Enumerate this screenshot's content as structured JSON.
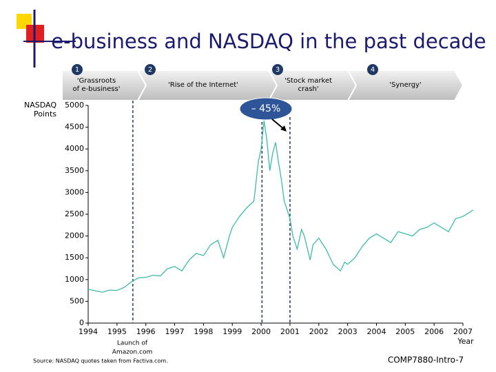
{
  "chart_data": {
    "type": "line",
    "title": "e-business and NASDAQ in the past decade",
    "ylabel": [
      "NASDAQ",
      "Points"
    ],
    "xlabel": "Year",
    "color": "#3bbcaa",
    "xlim": [
      1994,
      2007
    ],
    "ylim": [
      0,
      5000
    ],
    "xticks": [
      1994,
      1995,
      1996,
      1997,
      1998,
      1999,
      2000,
      2001,
      2002,
      2003,
      2004,
      2005,
      2006,
      2007
    ],
    "yticks": [
      0,
      500,
      1000,
      1500,
      2000,
      2500,
      3000,
      3500,
      4000,
      4500,
      5000
    ],
    "x": [
      1994.0,
      1994.25,
      1994.5,
      1994.75,
      1995.0,
      1995.25,
      1995.5,
      1995.75,
      1996.0,
      1996.25,
      1996.5,
      1996.75,
      1997.0,
      1997.25,
      1997.5,
      1997.75,
      1998.0,
      1998.25,
      1998.5,
      1998.7,
      1998.9,
      1999.0,
      1999.25,
      1999.5,
      1999.75,
      1999.9,
      2000.0,
      2000.1,
      2000.2,
      2000.3,
      2000.4,
      2000.5,
      2000.6,
      2000.7,
      2000.8,
      2001.0,
      2001.1,
      2001.25,
      2001.4,
      2001.5,
      2001.7,
      2001.8,
      2002.0,
      2002.25,
      2002.5,
      2002.75,
      2002.9,
      2003.0,
      2003.25,
      2003.5,
      2003.75,
      2004.0,
      2004.25,
      2004.5,
      2004.75,
      2005.0,
      2005.25,
      2005.5,
      2005.75,
      2006.0,
      2006.25,
      2006.5,
      2006.75,
      2007.0,
      2007.25,
      2007.35
    ],
    "values": [
      780,
      740,
      710,
      760,
      750,
      820,
      950,
      1040,
      1050,
      1100,
      1080,
      1250,
      1300,
      1200,
      1450,
      1600,
      1550,
      1800,
      1900,
      1500,
      2000,
      2200,
      2450,
      2650,
      2800,
      3700,
      4000,
      4650,
      4200,
      3500,
      3900,
      4150,
      3700,
      3300,
      2800,
      2400,
      2000,
      1700,
      2150,
      2000,
      1450,
      1800,
      1950,
      1700,
      1350,
      1200,
      1400,
      1350,
      1500,
      1750,
      1950,
      2050,
      1950,
      1850,
      2100,
      2050,
      2000,
      2150,
      2200,
      2300,
      2200,
      2100,
      2400,
      2450,
      2550,
      2600
    ],
    "markers": [
      1995.55,
      2000.03,
      2001.0
    ],
    "phases": [
      {
        "number": "1",
        "label": [
          "'Grassroots",
          "of e-business'"
        ]
      },
      {
        "number": "2",
        "label": [
          "'Rise of the Internet'"
        ]
      },
      {
        "number": "3",
        "label": [
          "'Stock market",
          "crash'"
        ]
      },
      {
        "number": "4",
        "label": [
          "'Synergy'"
        ]
      }
    ],
    "callout": "– 45%",
    "marker_note": [
      "Launch of",
      "Amazon.com"
    ],
    "source": "Source: NASDAQ quotes taken from Factiva.com.",
    "footer": "COMP7880-Intro-7"
  }
}
